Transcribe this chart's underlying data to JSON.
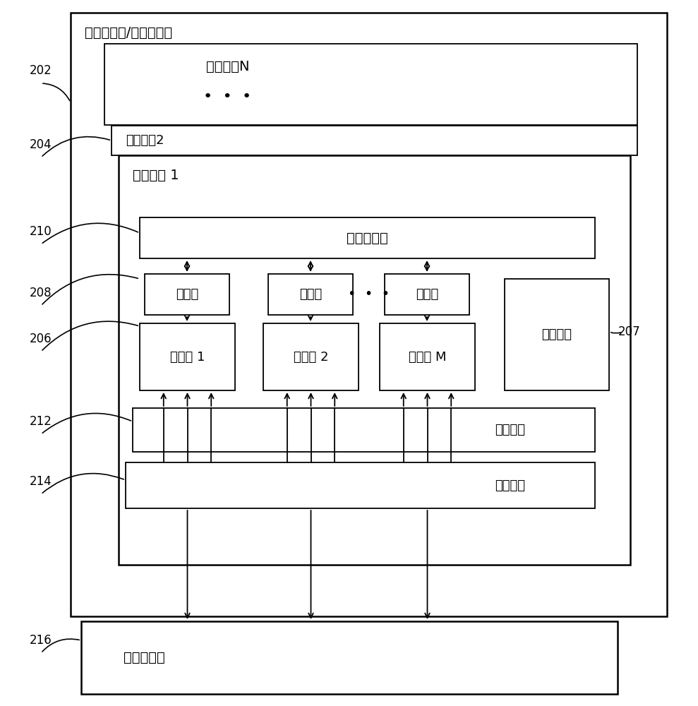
{
  "bg_color": "#ffffff",
  "border_color": "#000000",
  "text_color": "#000000",
  "fig_width": 9.89,
  "fig_height": 10.0,
  "title_text": "图形处理器/多核处理器",
  "label_202": "202",
  "label_204": "204",
  "label_206": "206",
  "label_207": "207",
  "label_208": "208",
  "label_210": "210",
  "label_212": "212",
  "label_214": "214",
  "label_216": "216",
  "text_mp_n": "多处理器N",
  "text_mp_2": "多处理器2",
  "text_mp_1": "多处理器 1",
  "text_shared_mem": "共享存储器",
  "text_reg1": "寄存器",
  "text_reg2": "寄存器",
  "text_reg3": "寄存器",
  "text_proc1": "处理器 1",
  "text_proc2": "处理器 2",
  "text_proc3": "处理器 M",
  "text_instr": "指令单元",
  "text_const_cache": "常量缓存",
  "text_tex_cache": "纹理缓存",
  "text_global_mem": "全局存储器",
  "dots3": "•  •  •"
}
